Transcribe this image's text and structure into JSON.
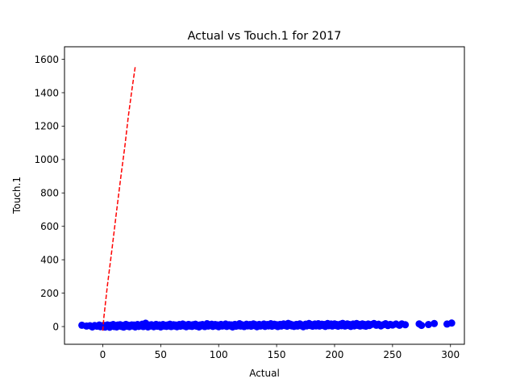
{
  "chart_data": {
    "type": "scatter",
    "title": "Actual vs Touch.1 for 2017",
    "xlabel": "Actual",
    "ylabel": "Touch.1",
    "xlim": [
      -33,
      312
    ],
    "ylim": [
      -106,
      1675
    ],
    "xticks": [
      0,
      50,
      100,
      150,
      200,
      250,
      300
    ],
    "yticks": [
      0,
      200,
      400,
      600,
      800,
      1000,
      1200,
      1400,
      1600
    ],
    "grid": false,
    "legend": "none",
    "series": [
      {
        "kind": "points",
        "color": "#0000ff",
        "points": [
          [
            -18,
            8
          ],
          [
            -14,
            3
          ],
          [
            -11,
            5
          ],
          [
            -9,
            -2
          ],
          [
            -7,
            6
          ],
          [
            -5,
            2
          ],
          [
            -3,
            9
          ],
          [
            -2,
            -1
          ],
          [
            -1,
            4
          ],
          [
            0,
            1
          ],
          [
            1,
            7
          ],
          [
            2,
            -3
          ],
          [
            3,
            5
          ],
          [
            4,
            10
          ],
          [
            5,
            2
          ],
          [
            6,
            -4
          ],
          [
            7,
            8
          ],
          [
            8,
            3
          ],
          [
            9,
            12
          ],
          [
            10,
            0
          ],
          [
            11,
            6
          ],
          [
            12,
            -2
          ],
          [
            13,
            9
          ],
          [
            14,
            4
          ],
          [
            15,
            11
          ],
          [
            16,
            1
          ],
          [
            17,
            7
          ],
          [
            18,
            -3
          ],
          [
            19,
            5
          ],
          [
            20,
            13
          ],
          [
            21,
            2
          ],
          [
            22,
            8
          ],
          [
            23,
            -1
          ],
          [
            24,
            6
          ],
          [
            25,
            10
          ],
          [
            26,
            3
          ],
          [
            27,
            9
          ],
          [
            28,
            -2
          ],
          [
            29,
            5
          ],
          [
            30,
            12
          ],
          [
            31,
            1
          ],
          [
            32,
            7
          ],
          [
            33,
            4
          ],
          [
            34,
            14
          ],
          [
            35,
            0
          ],
          [
            36,
            8
          ],
          [
            37,
            20
          ],
          [
            38,
            5
          ],
          [
            39,
            -2
          ],
          [
            40,
            9
          ],
          [
            41,
            3
          ],
          [
            42,
            11
          ],
          [
            43,
            6
          ],
          [
            44,
            -1
          ],
          [
            45,
            8
          ],
          [
            46,
            13
          ],
          [
            47,
            2
          ],
          [
            48,
            7
          ],
          [
            49,
            10
          ],
          [
            50,
            -2
          ],
          [
            51,
            5
          ],
          [
            52,
            12
          ],
          [
            53,
            3
          ],
          [
            54,
            8
          ],
          [
            55,
            1
          ],
          [
            56,
            10
          ],
          [
            57,
            4
          ],
          [
            58,
            14
          ],
          [
            59,
            0
          ],
          [
            60,
            7
          ],
          [
            61,
            11
          ],
          [
            62,
            3
          ],
          [
            63,
            9
          ],
          [
            64,
            -1
          ],
          [
            65,
            6
          ],
          [
            66,
            12
          ],
          [
            67,
            2
          ],
          [
            68,
            8
          ],
          [
            69,
            15
          ],
          [
            70,
            4
          ],
          [
            71,
            10
          ],
          [
            72,
            -1
          ],
          [
            73,
            6
          ],
          [
            74,
            13
          ],
          [
            75,
            3
          ],
          [
            76,
            9
          ],
          [
            77,
            1
          ],
          [
            78,
            11
          ],
          [
            79,
            5
          ],
          [
            80,
            14
          ],
          [
            81,
            2
          ],
          [
            82,
            8
          ],
          [
            83,
            -2
          ],
          [
            84,
            10
          ],
          [
            85,
            4
          ],
          [
            86,
            12
          ],
          [
            87,
            6
          ],
          [
            88,
            0
          ],
          [
            89,
            9
          ],
          [
            90,
            17
          ],
          [
            91,
            3
          ],
          [
            92,
            11
          ],
          [
            93,
            6
          ],
          [
            94,
            14
          ],
          [
            95,
            1
          ],
          [
            96,
            8
          ],
          [
            97,
            12
          ],
          [
            98,
            4
          ],
          [
            99,
            10
          ],
          [
            100,
            -1
          ],
          [
            101,
            7
          ],
          [
            102,
            13
          ],
          [
            103,
            3
          ],
          [
            104,
            9
          ],
          [
            105,
            5
          ],
          [
            106,
            15
          ],
          [
            107,
            1
          ],
          [
            108,
            8
          ],
          [
            109,
            11
          ],
          [
            110,
            4
          ],
          [
            111,
            10
          ],
          [
            112,
            -2
          ],
          [
            113,
            6
          ],
          [
            114,
            13
          ],
          [
            115,
            2
          ],
          [
            116,
            9
          ],
          [
            117,
            5
          ],
          [
            118,
            17
          ],
          [
            119,
            3
          ],
          [
            120,
            11
          ],
          [
            121,
            7
          ],
          [
            122,
            0
          ],
          [
            123,
            10
          ],
          [
            124,
            14
          ],
          [
            125,
            4
          ],
          [
            126,
            8
          ],
          [
            127,
            12
          ],
          [
            128,
            2
          ],
          [
            129,
            9
          ],
          [
            130,
            16
          ],
          [
            131,
            5
          ],
          [
            132,
            11
          ],
          [
            133,
            -1
          ],
          [
            134,
            7
          ],
          [
            135,
            13
          ],
          [
            136,
            3
          ],
          [
            137,
            10
          ],
          [
            138,
            6
          ],
          [
            139,
            15
          ],
          [
            140,
            1
          ],
          [
            141,
            9
          ],
          [
            142,
            12
          ],
          [
            143,
            4
          ],
          [
            144,
            10
          ],
          [
            145,
            17
          ],
          [
            146,
            2
          ],
          [
            147,
            8
          ],
          [
            148,
            14
          ],
          [
            149,
            5
          ],
          [
            150,
            11
          ],
          [
            151,
            0
          ],
          [
            152,
            9
          ],
          [
            153,
            13
          ],
          [
            154,
            3
          ],
          [
            155,
            10
          ],
          [
            156,
            16
          ],
          [
            157,
            6
          ],
          [
            158,
            12
          ],
          [
            159,
            2
          ],
          [
            160,
            19
          ],
          [
            161,
            7
          ],
          [
            162,
            14
          ],
          [
            163,
            4
          ],
          [
            164,
            10
          ],
          [
            165,
            1
          ],
          [
            166,
            8
          ],
          [
            167,
            13
          ],
          [
            168,
            3
          ],
          [
            169,
            11
          ],
          [
            170,
            16
          ],
          [
            171,
            5
          ],
          [
            172,
            10
          ],
          [
            173,
            -1
          ],
          [
            174,
            8
          ],
          [
            175,
            14
          ],
          [
            176,
            4
          ],
          [
            177,
            11
          ],
          [
            178,
            18
          ],
          [
            179,
            6
          ],
          [
            180,
            12
          ],
          [
            181,
            2
          ],
          [
            182,
            9
          ],
          [
            183,
            15
          ],
          [
            184,
            4
          ],
          [
            185,
            11
          ],
          [
            186,
            17
          ],
          [
            187,
            3
          ],
          [
            188,
            10
          ],
          [
            189,
            14
          ],
          [
            190,
            6
          ],
          [
            191,
            12
          ],
          [
            192,
            1
          ],
          [
            193,
            9
          ],
          [
            194,
            18
          ],
          [
            195,
            5
          ],
          [
            196,
            11
          ],
          [
            197,
            15
          ],
          [
            198,
            3
          ],
          [
            199,
            10
          ],
          [
            200,
            16
          ],
          [
            201,
            6
          ],
          [
            202,
            12
          ],
          [
            203,
            2
          ],
          [
            204,
            9
          ],
          [
            205,
            14
          ],
          [
            206,
            5
          ],
          [
            207,
            19
          ],
          [
            208,
            11
          ],
          [
            209,
            3
          ],
          [
            210,
            10
          ],
          [
            211,
            16
          ],
          [
            212,
            6
          ],
          [
            213,
            12
          ],
          [
            214,
            1
          ],
          [
            215,
            9
          ],
          [
            216,
            15
          ],
          [
            217,
            4
          ],
          [
            218,
            11
          ],
          [
            219,
            18
          ],
          [
            220,
            7
          ],
          [
            221,
            13
          ],
          [
            222,
            3
          ],
          [
            223,
            10
          ],
          [
            224,
            16
          ],
          [
            225,
            5
          ],
          [
            226,
            12
          ],
          [
            227,
            2
          ],
          [
            228,
            9
          ],
          [
            229,
            15
          ],
          [
            230,
            6
          ],
          [
            232,
            13
          ],
          [
            234,
            18
          ],
          [
            236,
            8
          ],
          [
            238,
            14
          ],
          [
            240,
            4
          ],
          [
            242,
            11
          ],
          [
            244,
            17
          ],
          [
            246,
            6
          ],
          [
            248,
            13
          ],
          [
            250,
            9
          ],
          [
            253,
            15
          ],
          [
            256,
            8
          ],
          [
            258,
            16
          ],
          [
            261,
            11
          ],
          [
            273,
            16
          ],
          [
            275,
            7
          ],
          [
            281,
            12
          ],
          [
            286,
            18
          ],
          [
            297,
            15
          ],
          [
            301,
            21
          ]
        ]
      },
      {
        "kind": "dashed-line",
        "color": "#ff0000",
        "points": [
          [
            0,
            -25
          ],
          [
            1,
            58
          ],
          [
            4,
            245
          ],
          [
            8,
            465
          ],
          [
            12,
            695
          ],
          [
            16,
            918
          ],
          [
            19,
            1075
          ],
          [
            22,
            1255
          ],
          [
            25,
            1410
          ],
          [
            28,
            1555
          ]
        ]
      }
    ]
  }
}
